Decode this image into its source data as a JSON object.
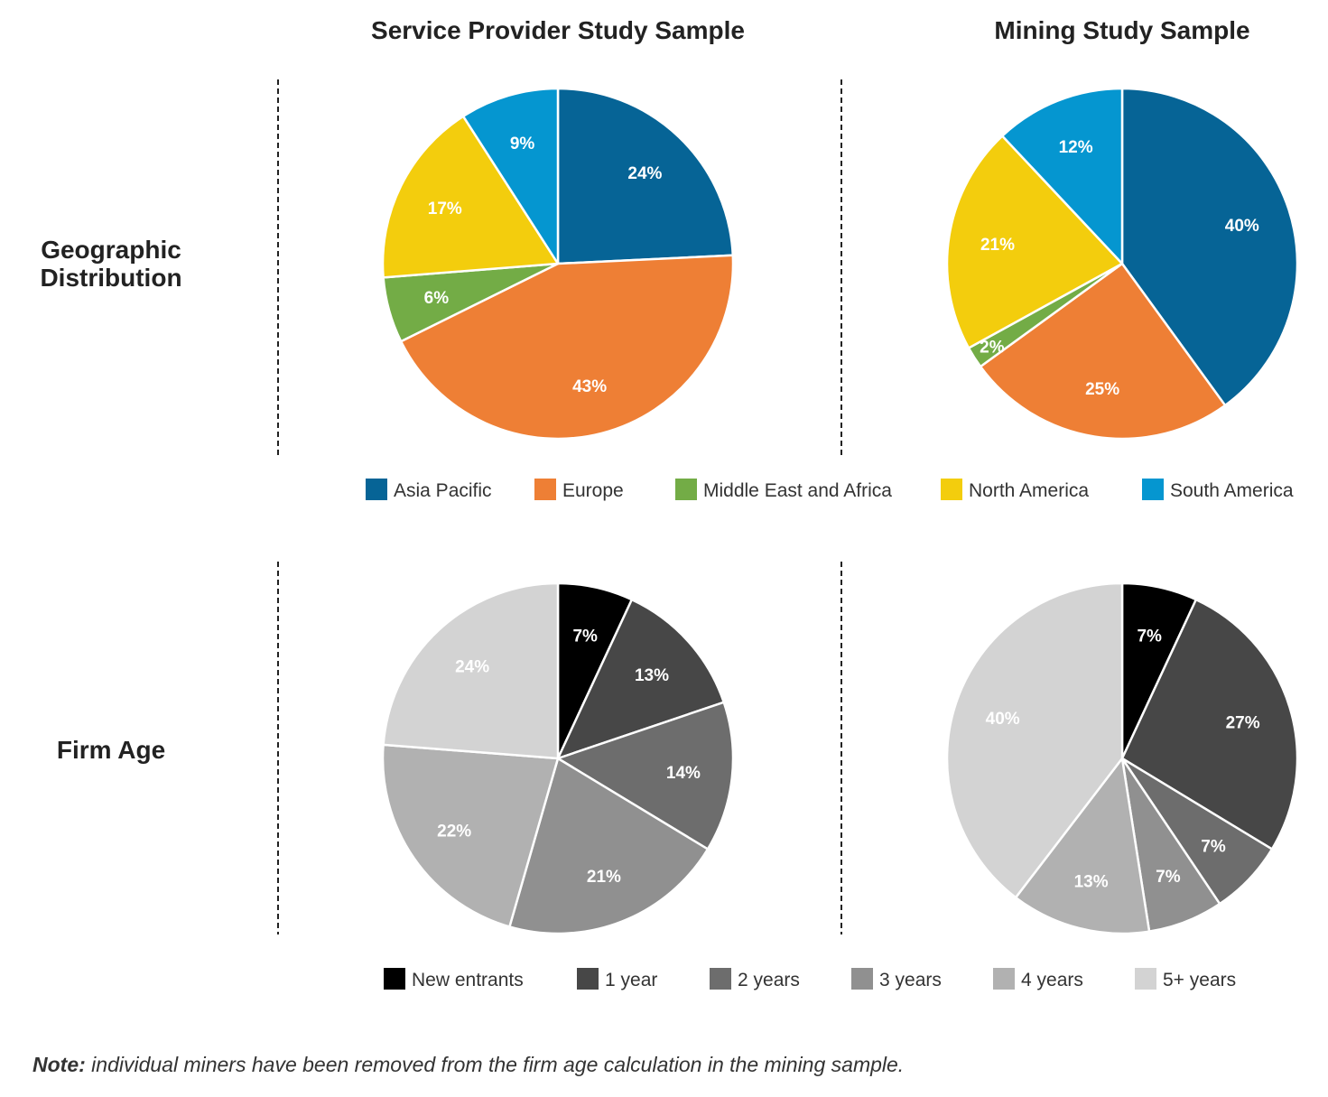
{
  "col_titles": [
    "Service Provider Study Sample",
    "Mining Study Sample"
  ],
  "row_titles": {
    "geo": [
      "Geographic",
      "Distribution"
    ],
    "age": [
      "Firm Age"
    ]
  },
  "note": {
    "bold": "Note:",
    "text": " individual miners have been removed from the firm age calculation in the mining sample."
  },
  "chart_data": [
    {
      "type": "pie",
      "title": "",
      "group": "Service Provider Study Sample",
      "row": "Geographic Distribution",
      "slices": [
        {
          "label": "Asia Pacific",
          "value": 24,
          "display": "24%",
          "color": "#066496"
        },
        {
          "label": "Europe",
          "value": 43,
          "display": "43%",
          "color": "#ee7f35"
        },
        {
          "label": "Middle East and Africa",
          "value": 6,
          "display": "6%",
          "color": "#73ac46"
        },
        {
          "label": "North America",
          "value": 17,
          "display": "17%",
          "color": "#f3cd0d"
        },
        {
          "label": "South America",
          "value": 9,
          "display": "9%",
          "color": "#0596d0"
        }
      ]
    },
    {
      "type": "pie",
      "title": "",
      "group": "Mining Study Sample",
      "row": "Geographic Distribution",
      "slices": [
        {
          "label": "Asia Pacific",
          "value": 40,
          "display": "40%",
          "color": "#066496"
        },
        {
          "label": "Europe",
          "value": 25,
          "display": "25%",
          "color": "#ee7f35"
        },
        {
          "label": "Middle East and Africa",
          "value": 2,
          "display": "2%",
          "color": "#73ac46"
        },
        {
          "label": "North America",
          "value": 21,
          "display": "21%",
          "color": "#f3cd0d"
        },
        {
          "label": "South America",
          "value": 12,
          "display": "12%",
          "color": "#0596d0"
        }
      ]
    },
    {
      "type": "pie",
      "title": "",
      "group": "Service Provider Study Sample",
      "row": "Firm Age",
      "slices": [
        {
          "label": "New entrants",
          "value": 7,
          "display": "7%",
          "color": "#000000"
        },
        {
          "label": "1 year",
          "value": 13,
          "display": "13%",
          "color": "#474747"
        },
        {
          "label": "2 years",
          "value": 14,
          "display": "14%",
          "color": "#6d6d6d"
        },
        {
          "label": "3 years",
          "value": 21,
          "display": "21%",
          "color": "#909090"
        },
        {
          "label": "4 years",
          "value": 22,
          "display": "22%",
          "color": "#b1b1b1"
        },
        {
          "label": "5+ years",
          "value": 24,
          "display": "24%",
          "color": "#d3d3d3"
        }
      ]
    },
    {
      "type": "pie",
      "title": "",
      "group": "Mining Study Sample",
      "row": "Firm Age",
      "slices": [
        {
          "label": "New entrants",
          "value": 7,
          "display": "7%",
          "color": "#000000"
        },
        {
          "label": "1 year",
          "value": 27,
          "display": "27%",
          "color": "#474747"
        },
        {
          "label": "2 years",
          "value": 7,
          "display": "7%",
          "color": "#6d6d6d"
        },
        {
          "label": "3 years",
          "value": 7,
          "display": "7%",
          "color": "#909090"
        },
        {
          "label": "4 years",
          "value": 13,
          "display": "13%",
          "color": "#b1b1b1"
        },
        {
          "label": "5+ years",
          "value": 40,
          "display": "40%",
          "color": "#d3d3d3"
        }
      ]
    }
  ],
  "legends": {
    "geo": [
      {
        "label": "Asia Pacific",
        "color": "#066496"
      },
      {
        "label": "Europe",
        "color": "#ee7f35"
      },
      {
        "label": "Middle East and Africa",
        "color": "#73ac46"
      },
      {
        "label": "North America",
        "color": "#f3cd0d"
      },
      {
        "label": "South America",
        "color": "#0596d0"
      }
    ],
    "age": [
      {
        "label": "New entrants",
        "color": "#000000"
      },
      {
        "label": "1 year",
        "color": "#474747"
      },
      {
        "label": "2 years",
        "color": "#6d6d6d"
      },
      {
        "label": "3 years",
        "color": "#909090"
      },
      {
        "label": "4 years",
        "color": "#b1b1b1"
      },
      {
        "label": "5+ years",
        "color": "#d3d3d3"
      }
    ]
  }
}
